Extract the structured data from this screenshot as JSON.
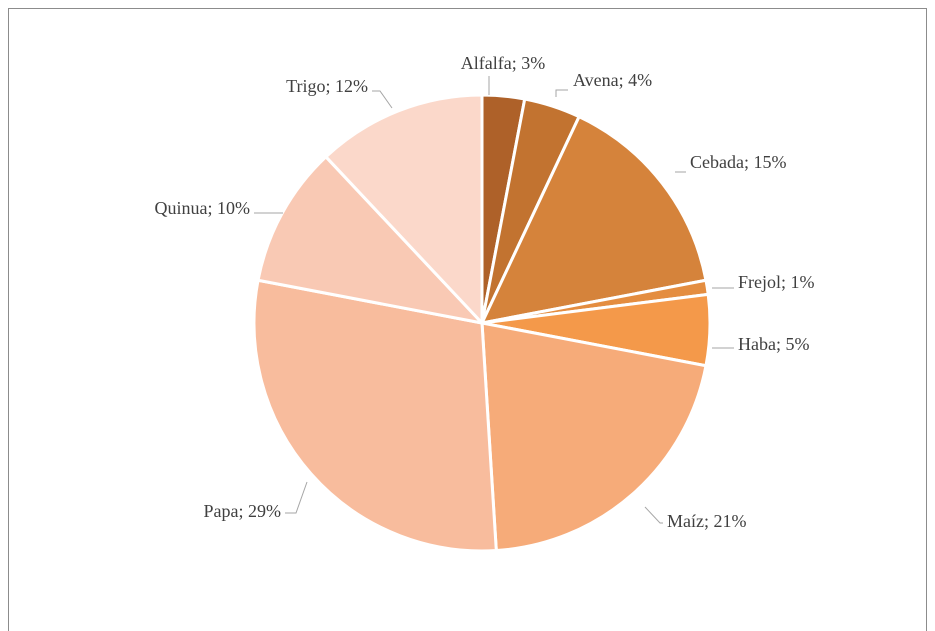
{
  "chart_data": {
    "type": "pie",
    "categories": [
      "Alfalfa",
      "Avena",
      "Cebada",
      "Frejol",
      "Haba",
      "Maíz",
      "Papa",
      "Quinua",
      "Trigo"
    ],
    "values": [
      3,
      4,
      15,
      1,
      5,
      21,
      29,
      10,
      12
    ],
    "value_labels": [
      "3%",
      "4%",
      "15%",
      "1%",
      "5%",
      "21%",
      "29%",
      "10%",
      "12%"
    ],
    "label_separator": "; ",
    "colors": [
      "#ae6129",
      "#c27330",
      "#d5833b",
      "#e48d40",
      "#f4994a",
      "#f6ab79",
      "#f8bc9d",
      "#f9c9b4",
      "#fbd8ca"
    ]
  }
}
